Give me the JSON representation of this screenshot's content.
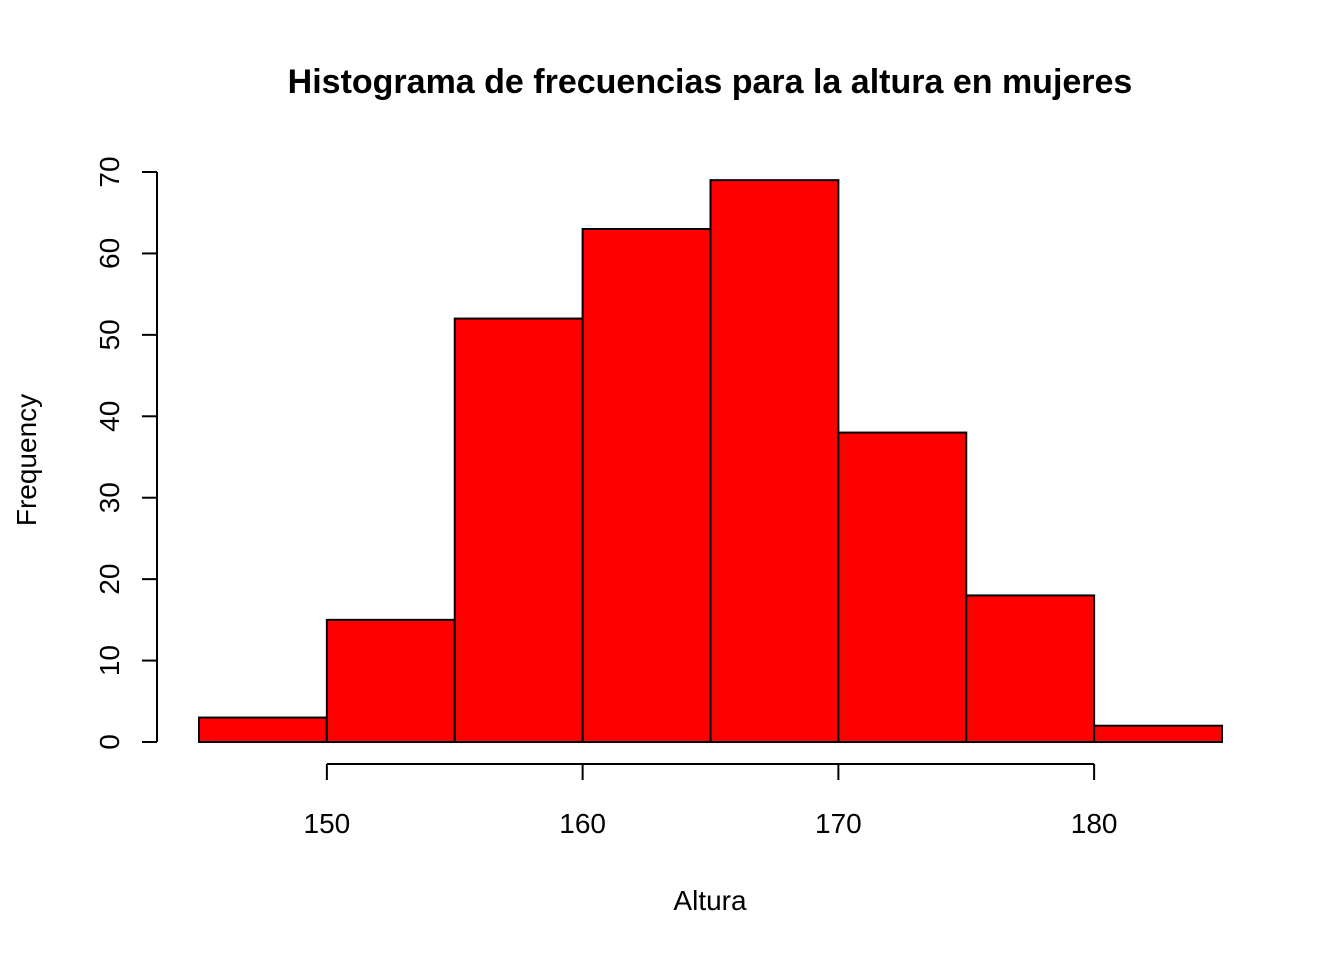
{
  "chart_data": {
    "type": "bar",
    "subtype": "histogram",
    "title": "Histograma de frecuencias para la altura en mujeres",
    "xlabel": "Altura",
    "ylabel": "Frequency",
    "bins": [
      {
        "x0": 145,
        "x1": 150,
        "value": 3
      },
      {
        "x0": 150,
        "x1": 155,
        "value": 15
      },
      {
        "x0": 155,
        "x1": 160,
        "value": 52
      },
      {
        "x0": 160,
        "x1": 165,
        "value": 63
      },
      {
        "x0": 165,
        "x1": 170,
        "value": 69
      },
      {
        "x0": 170,
        "x1": 175,
        "value": 38
      },
      {
        "x0": 175,
        "x1": 180,
        "value": 18
      },
      {
        "x0": 180,
        "x1": 185,
        "value": 2
      }
    ],
    "xticks": [
      150,
      160,
      170,
      180
    ],
    "yticks": [
      0,
      10,
      20,
      30,
      40,
      50,
      60,
      70
    ],
    "xlim": [
      145,
      185
    ],
    "ylim": [
      0,
      70
    ],
    "bar_color": "#ff0000",
    "border_color": "#000000",
    "grid": false,
    "legend": "none"
  }
}
